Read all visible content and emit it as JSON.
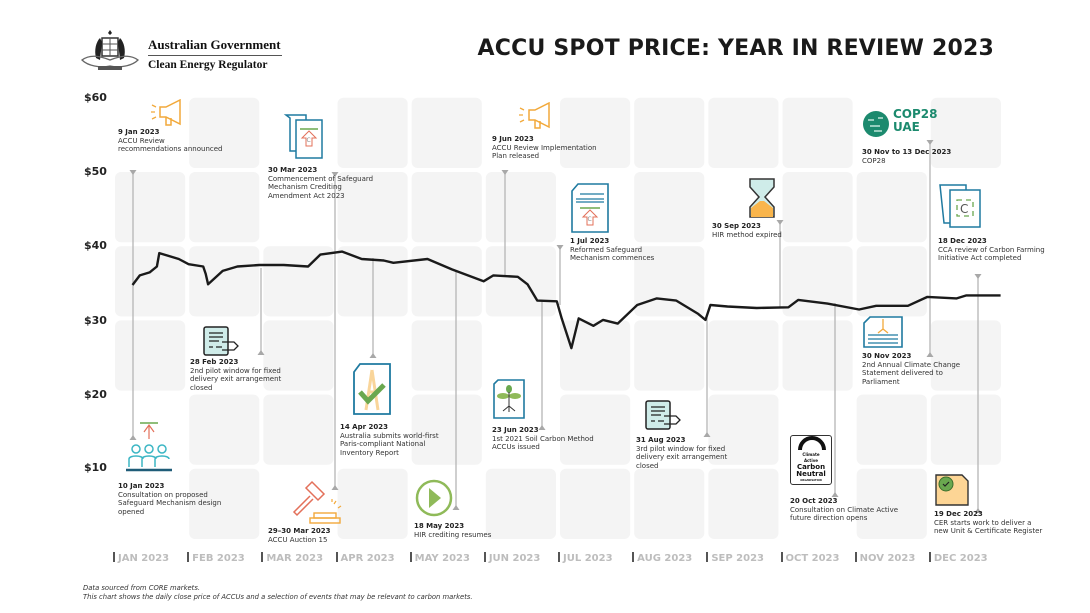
{
  "header": {
    "org_line1": "Australian Government",
    "org_line2": "Clean Energy Regulator",
    "title": "ACCU SPOT PRICE: YEAR IN REVIEW 2023"
  },
  "chart_data": {
    "type": "line",
    "title": "ACCU SPOT PRICE: YEAR IN REVIEW 2023",
    "xlabel": "",
    "ylabel": "",
    "ylim": [
      0,
      60
    ],
    "y_ticks": [
      "$60",
      "$50",
      "$40",
      "$30",
      "$20",
      "$10"
    ],
    "x_ticks": [
      "JAN 2023",
      "FEB 2023",
      "MAR 2023",
      "APR 2023",
      "MAY 2023",
      "JUN 2023",
      "JUL 2023",
      "AUG 2023",
      "SEP 2023",
      "OCT 2023",
      "NOV 2023",
      "DEC 2023"
    ],
    "grid": "tiles",
    "line_color": "#1a1a1a",
    "series": [
      {
        "x": [
          "2023-01-09",
          "2023-01-12",
          "2023-01-16",
          "2023-01-19",
          "2023-01-20",
          "2023-01-28",
          "2023-02-01",
          "2023-02-07",
          "2023-02-08",
          "2023-02-09",
          "2023-02-15",
          "2023-02-21",
          "2023-03-02",
          "2023-03-12",
          "2023-03-22",
          "2023-03-27",
          "2023-04-05",
          "2023-04-13",
          "2023-04-22",
          "2023-04-26",
          "2023-05-10",
          "2023-05-20",
          "2023-06-02",
          "2023-06-06",
          "2023-06-16",
          "2023-06-20",
          "2023-06-24",
          "2023-07-02",
          "2023-07-04",
          "2023-07-08",
          "2023-07-11",
          "2023-07-17",
          "2023-07-21",
          "2023-07-27",
          "2023-08-04",
          "2023-08-12",
          "2023-08-20",
          "2023-08-29",
          "2023-09-01",
          "2023-09-03",
          "2023-09-10",
          "2023-09-22",
          "2023-10-05",
          "2023-10-09",
          "2023-10-21",
          "2023-11-03",
          "2023-11-10",
          "2023-11-23",
          "2023-12-01",
          "2023-12-13",
          "2023-12-17",
          "2023-12-31"
        ],
        "y": [
          34.5,
          35.8,
          36.2,
          37,
          38.8,
          38,
          37.3,
          37,
          36,
          34.6,
          36.4,
          37,
          37.2,
          37.2,
          37,
          38.6,
          39,
          38,
          37.8,
          37.5,
          38,
          36.6,
          35,
          35.8,
          35.6,
          34.6,
          32.4,
          32.3,
          30,
          26,
          30,
          29,
          29.8,
          29.3,
          31.8,
          32.7,
          32.4,
          30.6,
          29.8,
          31.8,
          31.6,
          31.4,
          31.5,
          32.5,
          32,
          31.2,
          31.7,
          31.7,
          32.9,
          32.7,
          33.1,
          33.1
        ]
      }
    ],
    "events": [
      {
        "date": "9 Jan 2023",
        "text": "ACCU Review recommendations announced",
        "icon": "megaphone-icon"
      },
      {
        "date": "10 Jan 2023",
        "text": "Consultation on proposed Safeguard Mechanism design opened",
        "icon": "consultation-people-icon"
      },
      {
        "date": "28 Feb 2023",
        "text": "2nd pilot window for fixed delivery exit arrangement closed",
        "icon": "scroll-exit-icon"
      },
      {
        "date": "30 Mar 2023",
        "text": "Commencement of Safeguard Mechanism Crediting Amendment Act 2023",
        "icon": "legislation-document-icon"
      },
      {
        "date": "29–30 Mar 2023",
        "text": "ACCU Auction 15",
        "icon": "gavel-icon"
      },
      {
        "date": "14 Apr 2023",
        "text": "Australia submits world-first Paris-compliant National Inventory Report",
        "icon": "paris-report-check-icon"
      },
      {
        "date": "18 May 2023",
        "text": "HIR crediting resumes",
        "icon": "play-icon"
      },
      {
        "date": "9 Jun 2023",
        "text": "ACCU Review Implementation Plan released",
        "icon": "megaphone-icon"
      },
      {
        "date": "23 Jun 2023",
        "text": "1st 2021 Soil Carbon Method ACCUs issued",
        "icon": "soil-plant-document-icon"
      },
      {
        "date": "1 Jul 2023",
        "text": "Reformed Safeguard Mechanism commences",
        "icon": "safeguard-document-icon"
      },
      {
        "date": "31 Aug 2023",
        "text": "3rd pilot window for fixed delivery exit arrangement closed",
        "icon": "scroll-exit-icon"
      },
      {
        "date": "30 Sep 2023",
        "text": "HIR method expired",
        "icon": "hourglass-icon"
      },
      {
        "date": "20 Oct 2023",
        "text": "Consultation on Climate Active future direction opens",
        "icon": "climate-active-logo-icon"
      },
      {
        "date": "30 Nov to 13 Dec 2023",
        "text": "COP28",
        "icon": "cop28-logo-icon"
      },
      {
        "date": "30 Nov 2023",
        "text": "2nd Annual Climate Change Statement delivered to Parliament",
        "icon": "statement-document-icon"
      },
      {
        "date": "18 Dec 2023",
        "text": "CCA review of Carbon Farming Initiative Act completed",
        "icon": "carbon-document-icon"
      },
      {
        "date": "19 Dec 2023",
        "text": "CER starts work to deliver a new Unit & Certificate Register",
        "icon": "certificate-icon"
      }
    ],
    "logos": {
      "climate_active": [
        "Climate",
        "Active",
        "Carbon",
        "Neutral",
        "ORGANISATION"
      ],
      "cop28": [
        "COP28",
        "UAE"
      ]
    }
  },
  "footer": {
    "line1": "Data sourced from CORE markets.",
    "line2": "This chart shows the daily close price of ACCUs and a selection of events that may be relevant to carbon markets."
  },
  "colors": {
    "tile": "#f4f4f4",
    "line": "#1a1a1a",
    "leader": "#b5b5b5",
    "orange": "#f2a93b",
    "teal": "#1f7aa0",
    "red": "#e3705a",
    "green": "#6aa84f",
    "cop": "#1c8a6e"
  }
}
